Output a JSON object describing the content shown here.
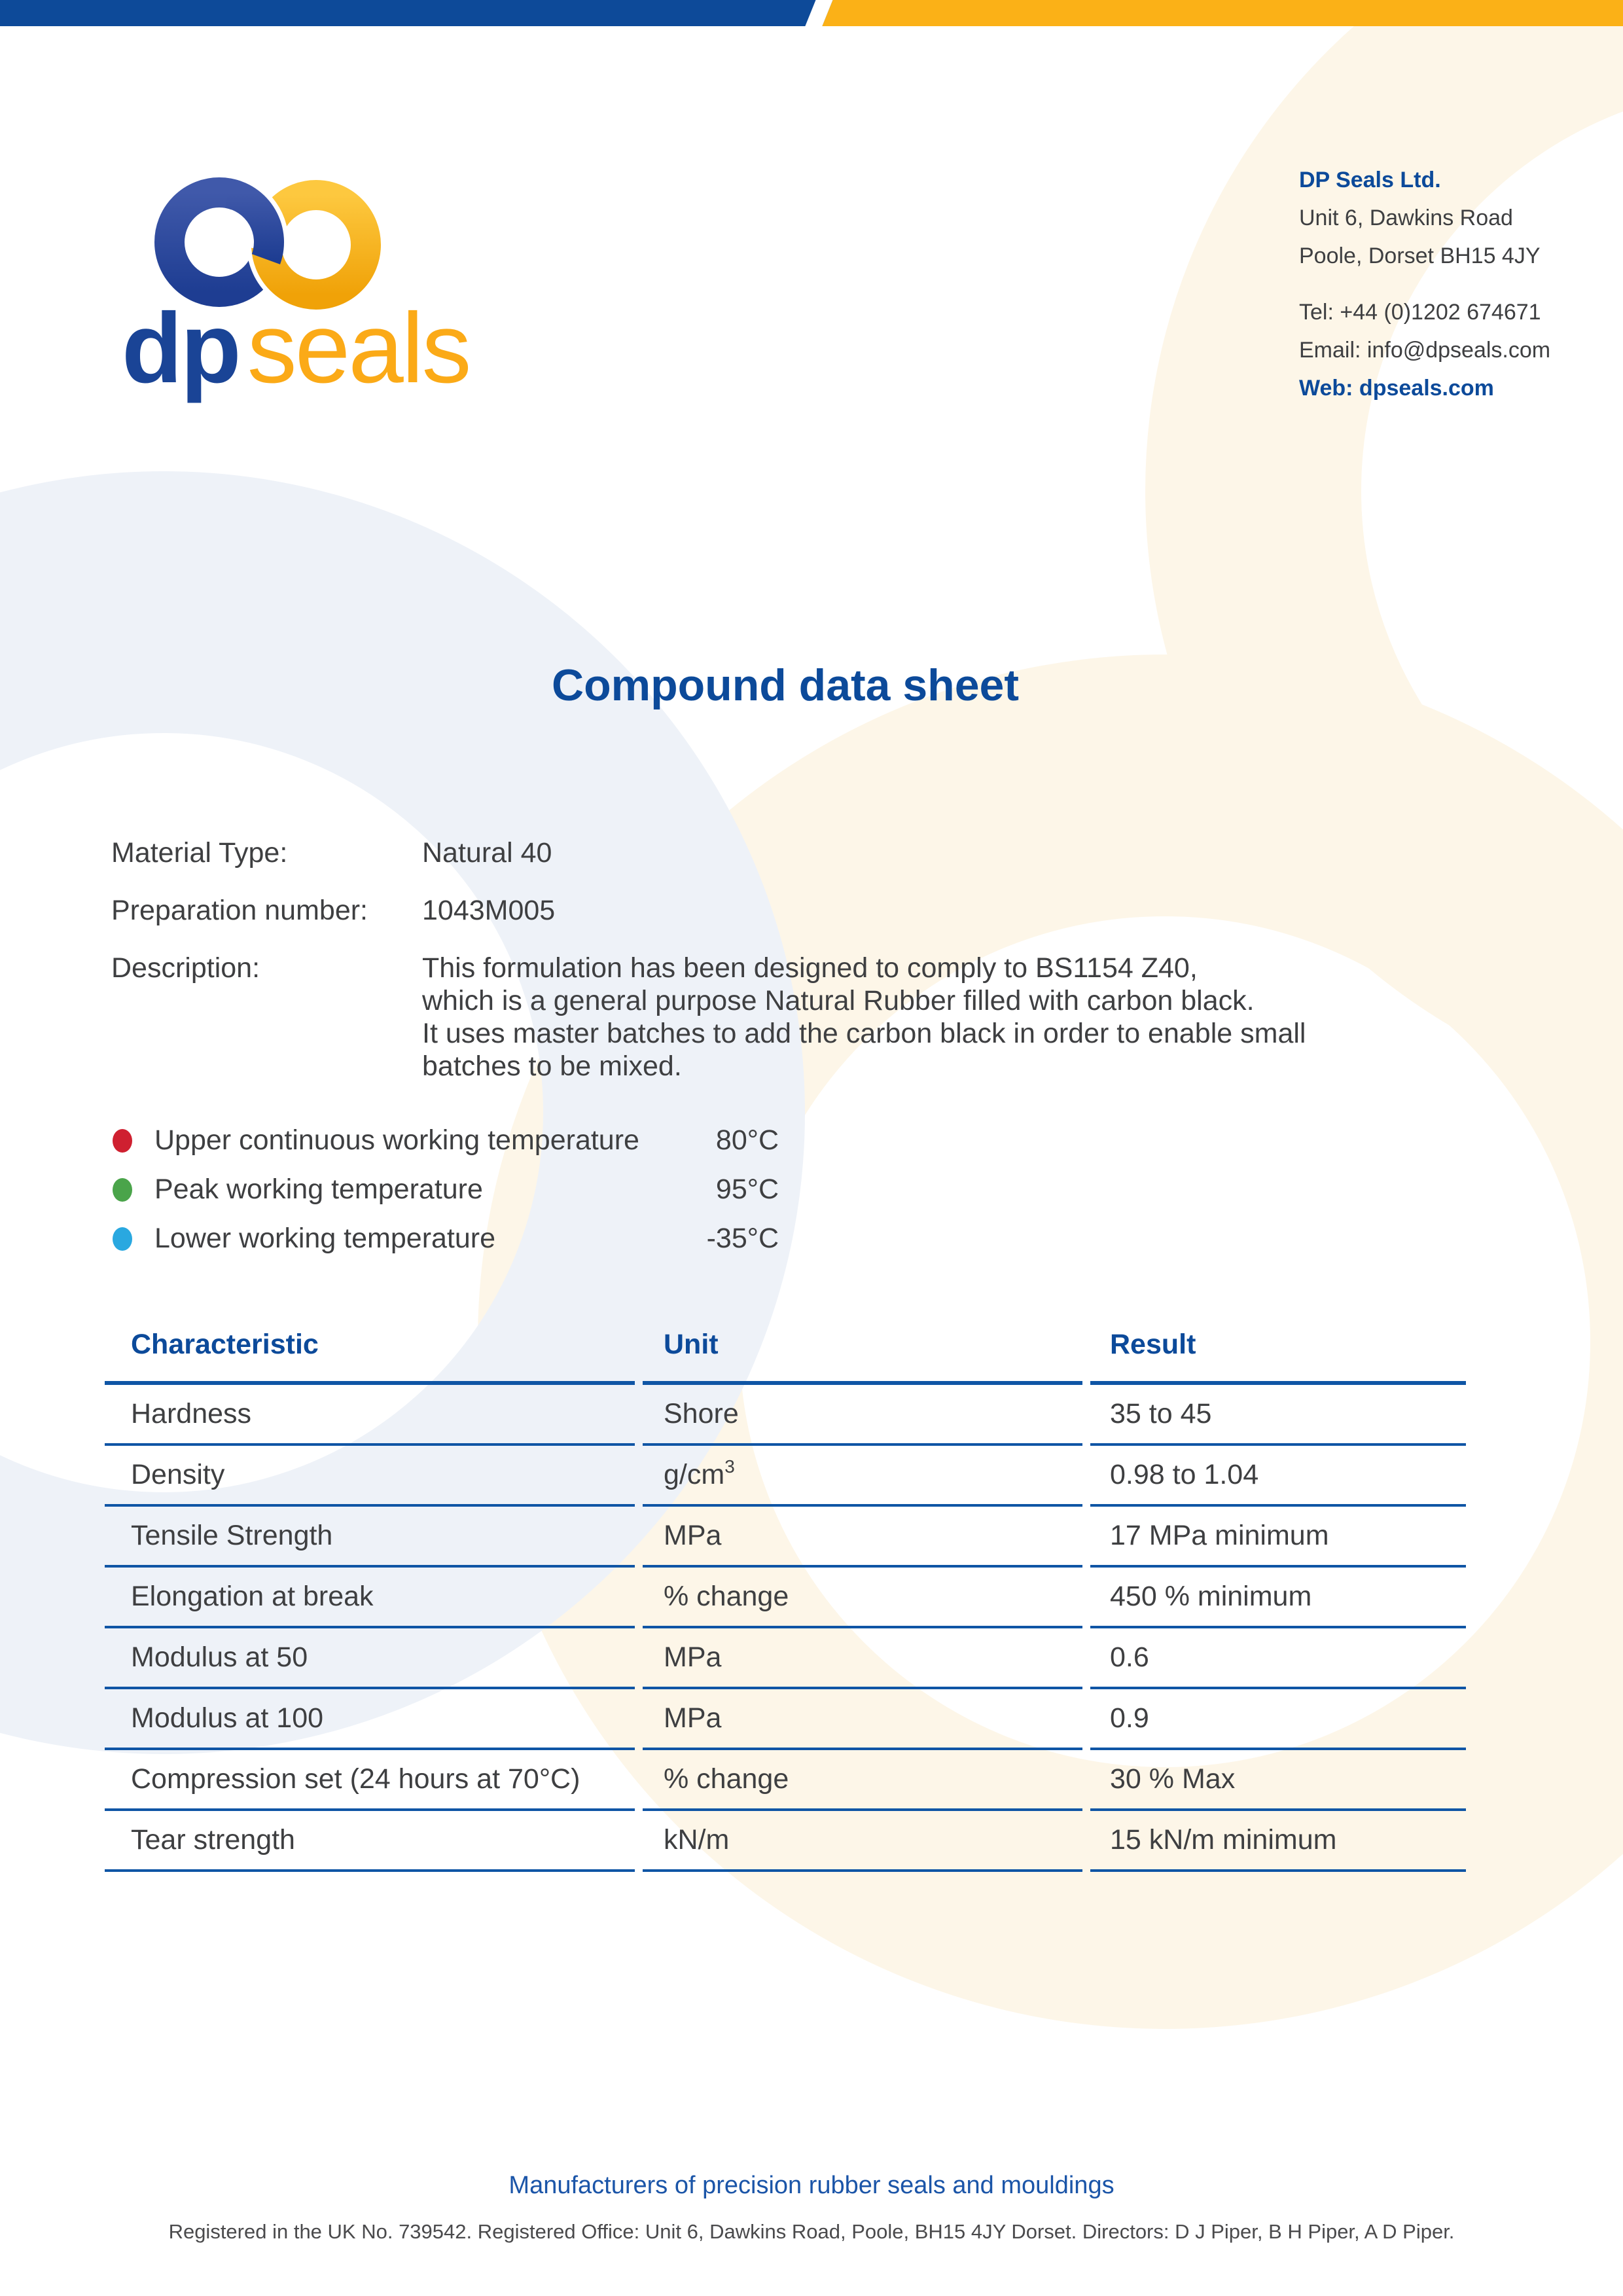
{
  "title": "Compound data sheet",
  "logo": {
    "dp": "dp",
    "seals": "seals"
  },
  "contact": {
    "company": "DP Seals Ltd.",
    "address_line1": "Unit 6, Dawkins Road",
    "address_line2": "Poole, Dorset BH15 4JY",
    "tel": "Tel: +44 (0)1202 674671",
    "email": "Email: info@dpseals.com",
    "web": "Web: dpseals.com"
  },
  "info": {
    "material_type": {
      "label": "Material Type:",
      "value": "Natural 40"
    },
    "preparation_number": {
      "label": "Preparation number:",
      "value": "1043M005"
    },
    "description": {
      "label": "Description:",
      "lines": [
        "This formulation has been designed to comply to BS1154 Z40,",
        "which is a general purpose Natural Rubber filled with carbon black.",
        "It uses master batches to add the carbon black in order to enable small",
        "batches to be mixed."
      ]
    }
  },
  "temperatures": [
    {
      "label": "Upper continuous working temperature",
      "value": "80°C",
      "color": "#cf2030"
    },
    {
      "label": "Peak working temperature",
      "value": "95°C",
      "color": "#4aa44a"
    },
    {
      "label": "Lower working temperature",
      "value": "-35°C",
      "color": "#29a8e0"
    }
  ],
  "table": {
    "headers": [
      "Characteristic",
      "Unit",
      "Result"
    ],
    "rows": [
      [
        "Hardness",
        "Shore",
        "35 to 45"
      ],
      [
        "Density",
        "g/cm³",
        "0.98 to 1.04"
      ],
      [
        "Tensile Strength",
        "MPa",
        "17 MPa minimum"
      ],
      [
        "Elongation at break",
        "% change",
        "450 % minimum"
      ],
      [
        "Modulus at 50",
        "MPa",
        "0.6"
      ],
      [
        "Modulus at 100",
        "MPa",
        "0.9"
      ],
      [
        "Compression set (24 hours at 70°C)",
        "% change",
        "30 % Max"
      ],
      [
        "Tear strength",
        "kN/m",
        "15 kN/m minimum"
      ]
    ]
  },
  "footer": {
    "tagline": "Manufacturers of precision rubber seals and mouldings",
    "registered": "Registered in the UK No. 739542. Registered Office: Unit 6, Dawkins Road, Poole, BH15 4JY Dorset. Directors: D J Piper, B H Piper, A D Piper."
  },
  "colors": {
    "brand_blue": "#0d4a99",
    "accent_yellow": "#fbb117",
    "rule_blue": "#0f55a5",
    "tagline_blue": "#1b55a8",
    "watermark_blue": "#eef2f8",
    "watermark_cream": "#fdf6e8"
  }
}
